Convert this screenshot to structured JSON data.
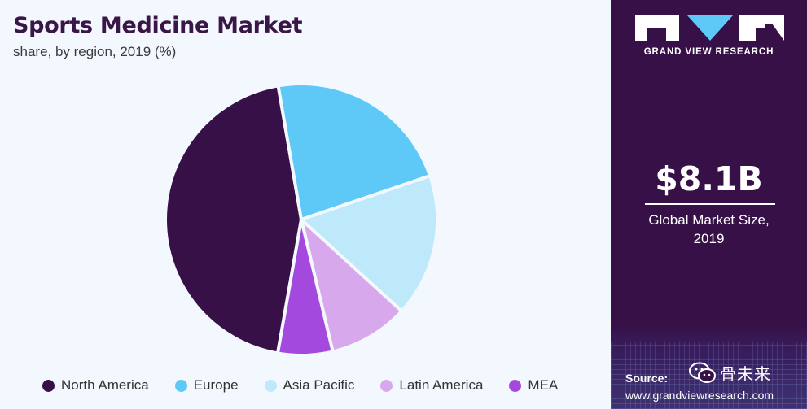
{
  "header": {
    "title": "Sports Medicine Market",
    "subtitle": "share, by region, 2019 (%)"
  },
  "brand": {
    "name": "GRAND VIEW RESEARCH",
    "logo_icon": "gvr-logo-icon"
  },
  "summary": {
    "value": "$8.1B",
    "caption_line1": "Global Market Size,",
    "caption_line2": "2019"
  },
  "source": {
    "label": "Source:",
    "url": "www.grandviewresearch.com"
  },
  "watermark": {
    "icon": "wechat-icon",
    "text": "骨未来"
  },
  "colors": {
    "background": "#f2f8fd",
    "panel": "#361047",
    "title": "#3a1547"
  },
  "chart_data": {
    "type": "pie",
    "title": "Sports Medicine Market",
    "subtitle": "share, by region, 2019 (%)",
    "unit": "%",
    "legend_position": "bottom",
    "slices": [
      {
        "name": "North America",
        "value": 44.5,
        "color": "#361047"
      },
      {
        "name": "Europe",
        "value": 22.5,
        "color": "#5ec8f6"
      },
      {
        "name": "Asia Pacific",
        "value": 17.0,
        "color": "#bde9fb"
      },
      {
        "name": "Latin America",
        "value": 9.5,
        "color": "#d8a8ec"
      },
      {
        "name": "MEA",
        "value": 6.5,
        "color": "#a349dd"
      }
    ]
  }
}
